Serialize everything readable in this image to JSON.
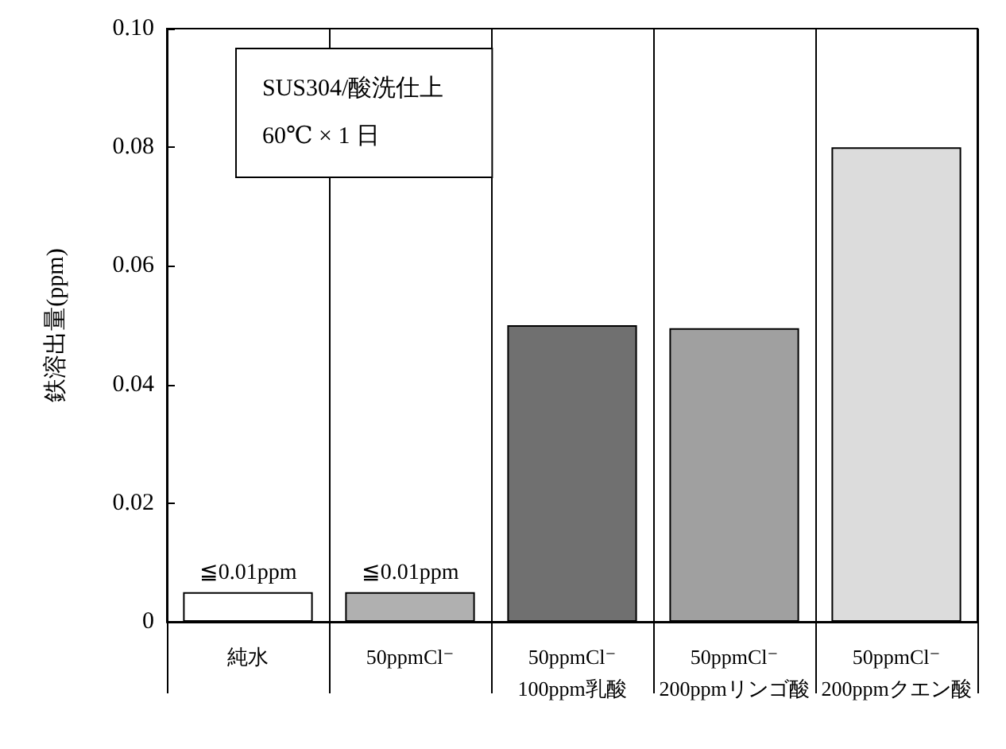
{
  "chart_data": {
    "type": "bar",
    "ylabel": "鉄溶出量(ppm)",
    "categories": [
      "純水",
      "50ppmCl⁻",
      "50ppmCl⁻\n100ppm乳酸",
      "50ppmCl⁻\n200ppmリンゴ酸",
      "50ppmCl⁻\n200ppmクエン酸"
    ],
    "values": [
      0.005,
      0.005,
      0.05,
      0.0495,
      0.08
    ],
    "colors": [
      "#ffffff",
      "#b0b0b0",
      "#707070",
      "#a0a0a0",
      "#dcdcdc"
    ],
    "value_labels": [
      "≦0.01ppm",
      "≦0.01ppm",
      null,
      null,
      null
    ],
    "ylim": [
      0,
      0.1
    ],
    "yticks": [
      0,
      0.02,
      0.04,
      0.06,
      0.08,
      {
        "value": 0.1,
        "label": "0.10"
      }
    ],
    "grid": "x",
    "annotations": [
      "SUS304/酸洗仕上\n60℃ × 1 日"
    ]
  }
}
